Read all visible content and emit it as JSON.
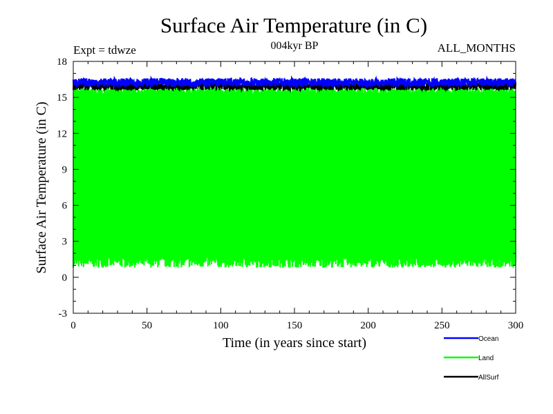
{
  "chart_data": {
    "type": "line",
    "title": "Surface Air Temperature (in C)",
    "subtitle_left": "Expt = tdwze",
    "subtitle_center": "004kyr BP",
    "subtitle_right": "ALL_MONTHS",
    "xlabel": "Time (in years since start)",
    "ylabel": "Surface Air Temperature (in C)",
    "xlim": [
      0,
      300
    ],
    "ylim": [
      -3,
      18
    ],
    "xticks": [
      0,
      50,
      100,
      150,
      200,
      250,
      300
    ],
    "yticks": [
      -3,
      0,
      3,
      6,
      9,
      12,
      15,
      18
    ],
    "grid": false,
    "legend_position": "bottom-right, outside plot",
    "series": [
      {
        "name": "Land",
        "color": "#00ff00",
        "x": [
          0,
          300
        ],
        "description_values": {
          "monthly_range_min": [
            0.0,
            1.8
          ],
          "monthly_range_max": [
            15.5,
            16.0
          ]
        },
        "y_min_band": 1.0,
        "y_max_band": 15.9
      },
      {
        "name": "AllSurf",
        "color": "#000000",
        "x": [
          0,
          300
        ],
        "y_min_band": 15.6,
        "y_max_band": 16.3
      },
      {
        "name": "Ocean",
        "color": "#0000ff",
        "x": [
          0,
          300
        ],
        "y_min_band": 15.9,
        "y_max_band": 16.6
      }
    ]
  }
}
